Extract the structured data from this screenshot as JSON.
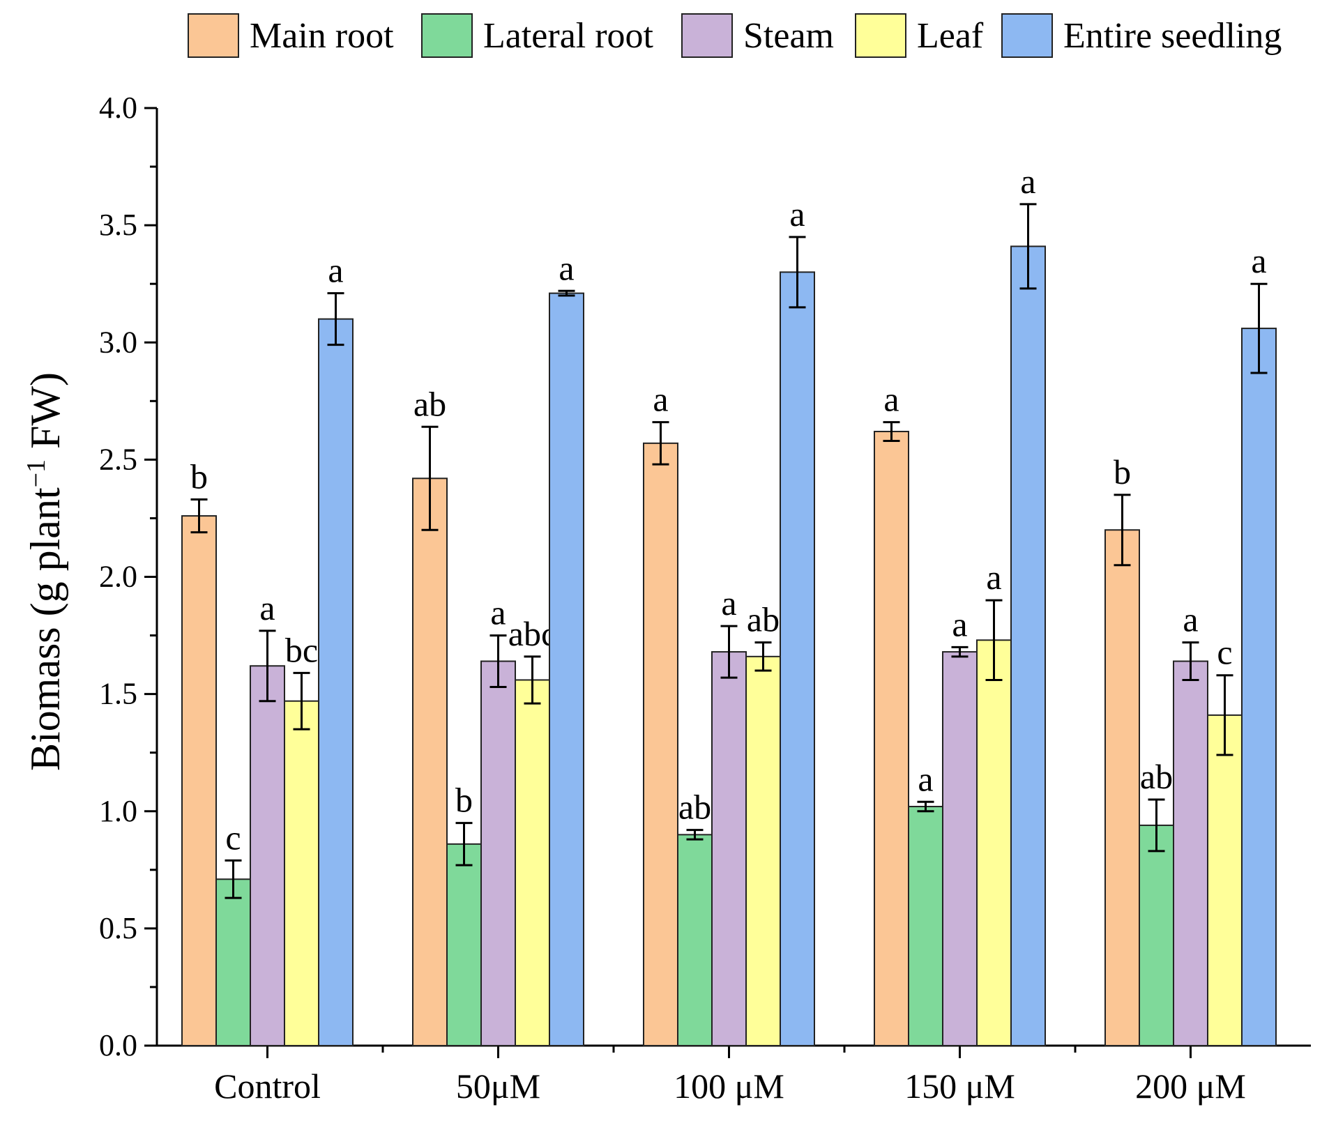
{
  "chart_data": {
    "type": "bar",
    "ylabel": "Biomass (g plant",
    "ylabel_sup": "−1",
    "ylabel_tail": " FW)",
    "xlabel": "",
    "ylim": [
      0,
      4.0
    ],
    "yticks": [
      "0.0",
      "0.5",
      "1.0",
      "1.5",
      "2.0",
      "2.5",
      "3.0",
      "3.5",
      "4.0"
    ],
    "categories": [
      "Control",
      "50μM",
      "100 μM",
      "150 μM",
      "200 μM"
    ],
    "series": [
      {
        "name": "Main root",
        "color": "#FBC695",
        "values": [
          2.26,
          2.42,
          2.57,
          2.62,
          2.2
        ],
        "errors": [
          0.07,
          0.22,
          0.09,
          0.04,
          0.15
        ],
        "labels": [
          "b",
          "ab",
          "a",
          "a",
          "b"
        ]
      },
      {
        "name": "Lateral root",
        "color": "#7FD99A",
        "values": [
          0.71,
          0.86,
          0.9,
          1.02,
          0.94
        ],
        "errors": [
          0.08,
          0.09,
          0.02,
          0.02,
          0.11
        ],
        "labels": [
          "c",
          "b",
          "ab",
          "a",
          "ab"
        ]
      },
      {
        "name": "Steam",
        "color": "#C9B2D8",
        "values": [
          1.62,
          1.64,
          1.68,
          1.68,
          1.64
        ],
        "errors": [
          0.15,
          0.11,
          0.11,
          0.02,
          0.08
        ],
        "labels": [
          "a",
          "a",
          "a",
          "a",
          "a"
        ]
      },
      {
        "name": "Leaf",
        "color": "#FFFF99",
        "values": [
          1.47,
          1.56,
          1.66,
          1.73,
          1.41
        ],
        "errors": [
          0.12,
          0.1,
          0.06,
          0.17,
          0.17
        ],
        "labels": [
          "bc",
          "abc",
          "ab",
          "a",
          "c"
        ]
      },
      {
        "name": "Entire seedling",
        "color": "#8DB8F2",
        "values": [
          3.1,
          3.21,
          3.3,
          3.41,
          3.06
        ],
        "errors": [
          0.11,
          0.01,
          0.15,
          0.18,
          0.19
        ],
        "labels": [
          "a",
          "a",
          "a",
          "a",
          "a"
        ]
      }
    ],
    "legend_position": "top"
  }
}
